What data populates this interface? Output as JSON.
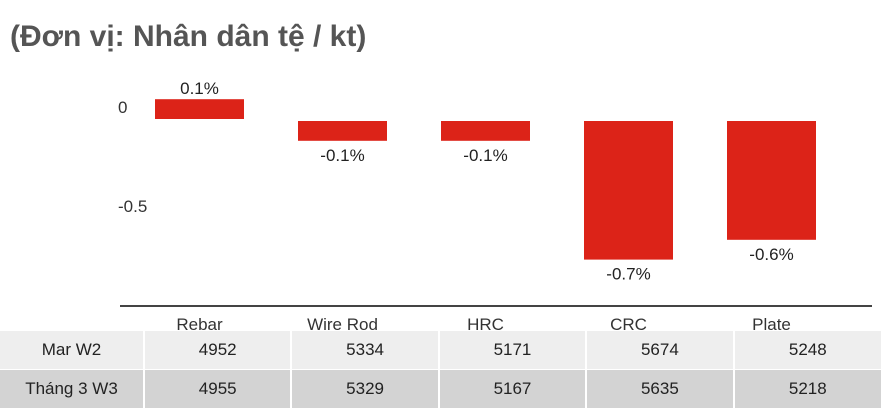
{
  "title": "(Đơn vị: Nhân dân tệ / kt)",
  "chart_data": {
    "type": "bar",
    "categories": [
      "Rebar",
      "Wire Rod",
      "HRC",
      "CRC",
      "Plate"
    ],
    "values": [
      0.1,
      -0.1,
      -0.1,
      -0.7,
      -0.6
    ],
    "data_labels": [
      "0.1%",
      "-0.1%",
      "-0.1%",
      "-0.7%",
      "-0.6%"
    ],
    "y_ticks": [
      0,
      -0.5
    ],
    "y_tick_labels": [
      "0",
      "-0.5"
    ],
    "ylim": [
      -0.9,
      0.1
    ],
    "grid": false,
    "bar_color": "#dc2318"
  },
  "table": {
    "rows": [
      {
        "label": "Mar W2",
        "values": [
          "4952",
          "5334",
          "5171",
          "5674",
          "5248"
        ]
      },
      {
        "label": "Tháng 3 W3",
        "values": [
          "4955",
          "5329",
          "5167",
          "5635",
          "5218"
        ]
      }
    ]
  }
}
